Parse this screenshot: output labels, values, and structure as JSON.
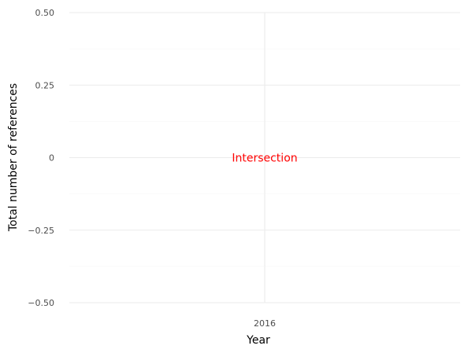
{
  "chart_data": {
    "type": "scatter",
    "title": "",
    "xlabel": "Year",
    "ylabel": "Total number of references",
    "x_categories": [
      "2016"
    ],
    "ylim": [
      -0.5,
      0.5
    ],
    "y_ticks": [
      {
        "value": 0.5,
        "label": "0.50"
      },
      {
        "value": 0.25,
        "label": "0.25"
      },
      {
        "value": 0,
        "label": "0"
      },
      {
        "value": -0.25,
        "label": "−0.25"
      },
      {
        "value": -0.5,
        "label": "−0.50"
      }
    ],
    "y_minor_ticks": [
      0.375,
      0.125,
      -0.125,
      -0.375
    ],
    "grid": true,
    "series": [],
    "annotations": [
      {
        "text": "Intersection",
        "x": "2016",
        "y": 0,
        "color": "#ff0000"
      }
    ],
    "colors": {
      "grid_major": "#ebebeb",
      "grid_minor": "#f5f5f5",
      "tick_text": "#4d4d4d"
    }
  }
}
